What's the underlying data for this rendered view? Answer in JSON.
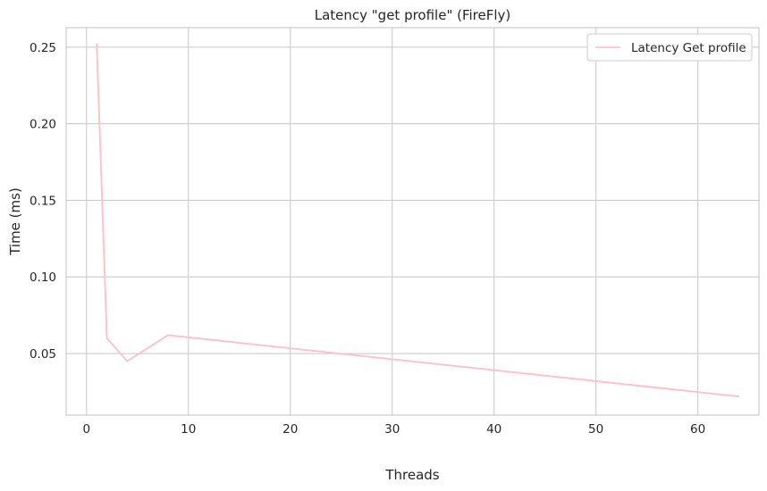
{
  "chart_data": {
    "type": "line",
    "title": "Latency \"get profile\" (FireFly)",
    "xlabel": "Threads",
    "ylabel": "Time (ms)",
    "xlim": [
      -2,
      66
    ],
    "ylim": [
      0.0098,
      0.2627
    ],
    "xticks": [
      0,
      10,
      20,
      30,
      40,
      50,
      60
    ],
    "yticks": [
      0.05,
      0.1,
      0.15,
      0.2,
      0.25
    ],
    "ytick_labels": [
      "0.05",
      "0.10",
      "0.15",
      "0.20",
      "0.25"
    ],
    "grid": true,
    "legend_position": "top-right",
    "series": [
      {
        "name": "Latency Get profile",
        "color": "#ffc0cb",
        "x": [
          1,
          2,
          4,
          8,
          64
        ],
        "y": [
          0.252,
          0.06,
          0.045,
          0.062,
          0.022
        ]
      }
    ]
  }
}
